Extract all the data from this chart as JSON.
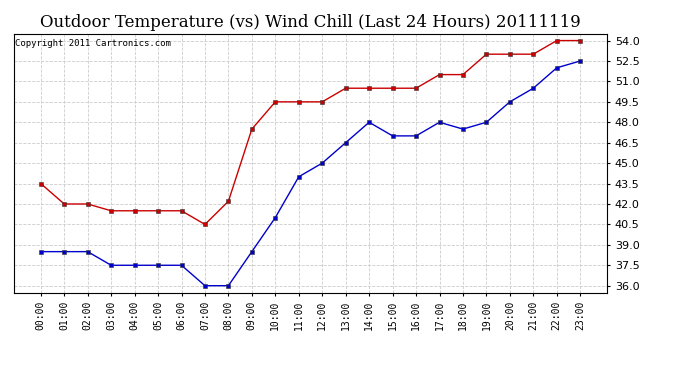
{
  "title": "Outdoor Temperature (vs) Wind Chill (Last 24 Hours) 20111119",
  "copyright": "Copyright 2011 Cartronics.com",
  "x_labels": [
    "00:00",
    "01:00",
    "02:00",
    "03:00",
    "04:00",
    "05:00",
    "06:00",
    "07:00",
    "08:00",
    "09:00",
    "10:00",
    "11:00",
    "12:00",
    "13:00",
    "14:00",
    "15:00",
    "16:00",
    "17:00",
    "18:00",
    "19:00",
    "20:00",
    "21:00",
    "22:00",
    "23:00"
  ],
  "temp_red": [
    43.5,
    42.0,
    42.0,
    41.5,
    41.5,
    41.5,
    41.5,
    40.5,
    42.2,
    47.5,
    49.5,
    49.5,
    49.5,
    50.5,
    50.5,
    50.5,
    50.5,
    51.5,
    51.5,
    53.0,
    53.0,
    53.0,
    54.0,
    54.0
  ],
  "wind_chill_blue": [
    38.5,
    38.5,
    38.5,
    37.5,
    37.5,
    37.5,
    37.5,
    36.0,
    36.0,
    38.5,
    41.0,
    44.0,
    45.0,
    46.5,
    48.0,
    47.0,
    47.0,
    48.0,
    47.5,
    48.0,
    49.5,
    50.5,
    52.0,
    52.5
  ],
  "ylim": [
    35.5,
    54.5
  ],
  "yticks": [
    36.0,
    37.5,
    39.0,
    40.5,
    42.0,
    43.5,
    45.0,
    46.5,
    48.0,
    49.5,
    51.0,
    52.5,
    54.0
  ],
  "red_color": "#cc0000",
  "blue_color": "#0000cc",
  "grid_color": "#cccccc",
  "background_color": "#ffffff",
  "title_fontsize": 12,
  "copyright_fontsize": 6.5,
  "tick_fontsize": 7,
  "ytick_fontsize": 8
}
